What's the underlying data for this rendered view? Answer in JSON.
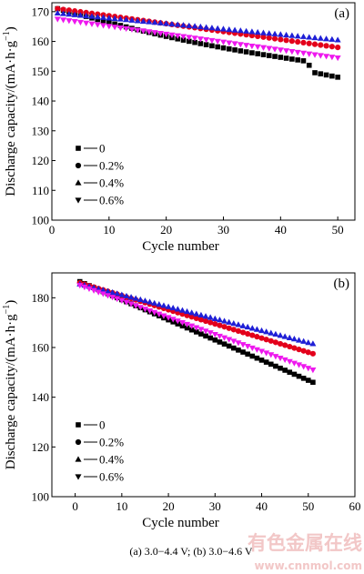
{
  "chart_data": [
    {
      "type": "scatter",
      "panel_label": "(a)",
      "xlabel": "Cycle number",
      "ylabel": "Discharge capacity/(mA·h·g",
      "ylabel_sup": "−1",
      "ylabel_close": ")",
      "xlim": [
        0,
        53
      ],
      "ylim": [
        100,
        173
      ],
      "xticks": [
        0,
        10,
        20,
        30,
        40,
        50
      ],
      "yticks": [
        100,
        110,
        120,
        130,
        140,
        150,
        160,
        170
      ],
      "legend_position": "lower-left",
      "series": [
        {
          "name": "0",
          "marker": "square",
          "color": "#000000",
          "start": 171,
          "end": 148,
          "x_start": 1,
          "x_end": 50,
          "kinks": [
            [
              44,
              153.5
            ],
            [
              45,
              152
            ],
            [
              46,
              149.5
            ]
          ]
        },
        {
          "name": "0.2%",
          "marker": "circle",
          "color": "#e3001b",
          "start": 171,
          "end": 158,
          "x_start": 1,
          "x_end": 50
        },
        {
          "name": "0.4%",
          "marker": "triangle-up",
          "color": "#1f1fd6",
          "start": 169.5,
          "end": 160.5,
          "x_start": 1,
          "x_end": 50
        },
        {
          "name": "0.6%",
          "marker": "triangle-down",
          "color": "#ee18ee",
          "start": 167.5,
          "end": 154.5,
          "x_start": 1,
          "x_end": 50
        }
      ]
    },
    {
      "type": "scatter",
      "panel_label": "(b)",
      "xlabel": "Cycle number",
      "ylabel": "Discharge capacity/(mA·h·g",
      "ylabel_sup": "−1",
      "ylabel_close": ")",
      "xlim": [
        -5,
        60
      ],
      "ylim": [
        100,
        190
      ],
      "xticks": [
        0,
        10,
        20,
        30,
        40,
        50,
        60
      ],
      "yticks": [
        100,
        120,
        140,
        160,
        180
      ],
      "legend_position": "lower-left",
      "series": [
        {
          "name": "0",
          "marker": "square",
          "color": "#000000",
          "start": 186.5,
          "end": 146,
          "x_start": 1,
          "x_end": 51
        },
        {
          "name": "0.2%",
          "marker": "circle",
          "color": "#e3001b",
          "start": 186,
          "end": 157.5,
          "x_start": 1,
          "x_end": 51
        },
        {
          "name": "0.4%",
          "marker": "triangle-up",
          "color": "#1f1fd6",
          "start": 185.5,
          "end": 161.5,
          "x_start": 1,
          "x_end": 51
        },
        {
          "name": "0.6%",
          "marker": "triangle-down",
          "color": "#ee18ee",
          "start": 185,
          "end": 151,
          "x_start": 1,
          "x_end": 51
        }
      ]
    }
  ],
  "caption": "(a) 3.0−4.4 V; (b) 3.0−4.6 V",
  "watermark": {
    "text": "有色金属在线",
    "url": "www.cnnmol.com"
  }
}
